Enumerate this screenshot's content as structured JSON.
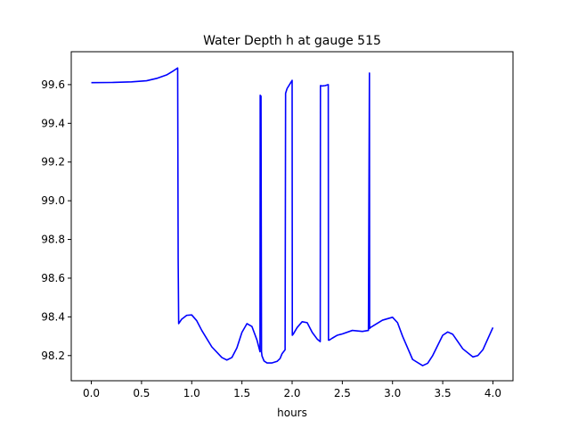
{
  "chart_data": {
    "type": "line",
    "title": "Water Depth h at gauge 515",
    "xlabel": "hours",
    "ylabel": "",
    "xlim": [
      -0.2,
      4.2
    ],
    "ylim": [
      98.07,
      99.77
    ],
    "xticks": [
      0.0,
      0.5,
      1.0,
      1.5,
      2.0,
      2.5,
      3.0,
      3.5,
      4.0
    ],
    "xtick_labels": [
      "0.0",
      "0.5",
      "1.0",
      "1.5",
      "2.0",
      "2.5",
      "3.0",
      "3.5",
      "4.0"
    ],
    "yticks": [
      98.2,
      98.4,
      98.6,
      98.8,
      99.0,
      99.2,
      99.4,
      99.6
    ],
    "ytick_labels": [
      "98.2",
      "98.4",
      "98.6",
      "98.8",
      "99.0",
      "99.2",
      "99.4",
      "99.6"
    ],
    "grid": false,
    "series": [
      {
        "color": "#0000ff",
        "x": [
          0.0,
          0.2,
          0.4,
          0.55,
          0.65,
          0.75,
          0.82,
          0.86,
          0.865,
          0.87,
          0.9,
          0.95,
          1.0,
          1.05,
          1.1,
          1.2,
          1.3,
          1.35,
          1.4,
          1.45,
          1.5,
          1.55,
          1.6,
          1.65,
          1.68,
          1.682,
          1.69,
          1.695,
          1.7,
          1.72,
          1.75,
          1.8,
          1.85,
          1.88,
          1.9,
          1.93,
          1.935,
          1.95,
          1.98,
          2.0,
          2.002,
          2.01,
          2.05,
          2.1,
          2.15,
          2.2,
          2.25,
          2.28,
          2.282,
          2.3,
          2.33,
          2.36,
          2.362,
          2.37,
          2.4,
          2.45,
          2.5,
          2.6,
          2.7,
          2.76,
          2.77,
          2.772,
          2.78,
          2.9,
          3.0,
          3.05,
          3.1,
          3.2,
          3.3,
          3.35,
          3.4,
          3.5,
          3.55,
          3.6,
          3.7,
          3.8,
          3.85,
          3.9,
          4.0
        ],
        "y": [
          99.61,
          99.611,
          99.614,
          99.62,
          99.632,
          99.65,
          99.672,
          99.686,
          98.7,
          98.365,
          98.388,
          98.408,
          98.41,
          98.38,
          98.33,
          98.245,
          98.19,
          98.177,
          98.19,
          98.24,
          98.32,
          98.365,
          98.35,
          98.28,
          98.22,
          99.545,
          99.54,
          98.22,
          98.198,
          98.172,
          98.162,
          98.162,
          98.17,
          98.185,
          98.21,
          98.23,
          99.555,
          99.58,
          99.605,
          99.622,
          98.305,
          98.31,
          98.345,
          98.375,
          98.37,
          98.32,
          98.285,
          98.272,
          99.595,
          99.593,
          99.595,
          99.6,
          98.28,
          98.28,
          98.29,
          98.305,
          98.312,
          98.33,
          98.325,
          98.33,
          99.66,
          98.34,
          98.345,
          98.383,
          98.398,
          98.37,
          98.3,
          98.18,
          98.148,
          98.16,
          98.2,
          98.305,
          98.322,
          98.31,
          98.235,
          98.193,
          98.2,
          98.23,
          98.345
        ]
      }
    ]
  }
}
